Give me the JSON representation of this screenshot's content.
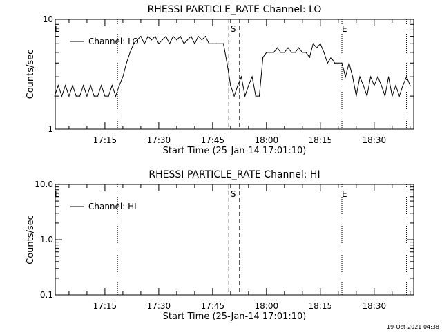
{
  "footer_timestamp": "19-Oct-2021 04:38",
  "chart_data": [
    {
      "type": "line",
      "title": "RHESSI PARTICLE_RATE Channel: LO",
      "xlabel": "Start Time (25-Jan-14 17:01:10)",
      "ylabel": "Counts/sec",
      "y_scale": "log",
      "ylim": [
        1,
        10
      ],
      "y_ticks": [
        {
          "value": 1,
          "label": "1"
        },
        {
          "value": 10,
          "label": "10"
        }
      ],
      "x_time_range": [
        "17:01:10",
        "18:41:00"
      ],
      "x_ticks": [
        "17:15",
        "17:30",
        "17:45",
        "18:00",
        "18:15",
        "18:30"
      ],
      "legend": "top-left",
      "series": [
        {
          "name": "Channel: LO",
          "x": [
            "17:01",
            "17:02",
            "17:03",
            "17:04",
            "17:05",
            "17:06",
            "17:07",
            "17:08",
            "17:09",
            "17:10",
            "17:11",
            "17:12",
            "17:13",
            "17:14",
            "17:15",
            "17:16",
            "17:17",
            "17:18",
            "17:19",
            "17:20",
            "17:21",
            "17:22",
            "17:23",
            "17:24",
            "17:25",
            "17:26",
            "17:27",
            "17:28",
            "17:29",
            "17:30",
            "17:31",
            "17:32",
            "17:33",
            "17:34",
            "17:35",
            "17:36",
            "17:37",
            "17:38",
            "17:39",
            "17:40",
            "17:41",
            "17:42",
            "17:43",
            "17:44",
            "17:45",
            "17:46",
            "17:47",
            "17:48",
            "17:49",
            "17:50",
            "17:51",
            "17:52",
            "17:53",
            "17:54",
            "17:55",
            "17:56",
            "17:57",
            "17:58",
            "17:59",
            "18:00",
            "18:01",
            "18:02",
            "18:03",
            "18:04",
            "18:05",
            "18:06",
            "18:07",
            "18:08",
            "18:09",
            "18:10",
            "18:11",
            "18:12",
            "18:13",
            "18:14",
            "18:15",
            "18:16",
            "18:17",
            "18:18",
            "18:19",
            "18:20",
            "18:21",
            "18:22",
            "18:23",
            "18:24",
            "18:25",
            "18:26",
            "18:27",
            "18:28",
            "18:29",
            "18:30",
            "18:31",
            "18:32",
            "18:33",
            "18:34",
            "18:35",
            "18:36",
            "18:37",
            "18:38",
            "18:39",
            "18:40"
          ],
          "y": [
            2,
            2.5,
            2,
            2.5,
            2,
            2.5,
            2,
            2,
            2.5,
            2,
            2.5,
            2,
            2,
            2.5,
            2,
            2,
            2.5,
            2,
            2.5,
            3,
            4,
            5,
            6,
            6.5,
            7,
            6,
            7,
            6.5,
            7,
            6,
            6.5,
            7,
            6,
            7,
            6.5,
            7,
            6,
            6.5,
            7,
            6,
            7,
            6.5,
            7,
            6,
            6,
            6,
            6,
            6,
            4,
            2.5,
            2,
            2.5,
            3,
            2,
            2.5,
            3,
            2,
            2,
            4.5,
            5,
            5,
            5,
            5.5,
            5,
            5,
            5.5,
            5,
            5,
            5.5,
            5,
            5,
            4.5,
            6,
            5.5,
            6,
            5,
            4,
            4.5,
            4,
            4,
            4,
            3,
            4,
            3,
            2,
            3,
            2.5,
            2,
            3,
            2.5,
            3,
            2.5,
            2,
            3,
            2,
            2.5,
            2,
            2.5,
            3,
            2.5
          ]
        }
      ],
      "annotations": [
        {
          "label": "E",
          "time": "17:01"
        },
        {
          "label": "S",
          "time": "17:50"
        },
        {
          "label": "E",
          "time": "18:21"
        }
      ],
      "dotted_lines": [
        "17:18:30",
        "18:21",
        "18:39"
      ],
      "dashed_lines": [
        "17:49:30",
        "17:52:30"
      ]
    },
    {
      "type": "line",
      "title": "RHESSI PARTICLE_RATE Channel: HI",
      "xlabel": "Start Time (25-Jan-14 17:01:10)",
      "ylabel": "Counts/sec",
      "y_scale": "log",
      "ylim": [
        0.1,
        10
      ],
      "y_ticks": [
        {
          "value": 0.1,
          "label": "0.1"
        },
        {
          "value": 1,
          "label": "1.0"
        },
        {
          "value": 10,
          "label": "10.0"
        }
      ],
      "x_time_range": [
        "17:01:10",
        "18:41:00"
      ],
      "x_ticks": [
        "17:15",
        "17:30",
        "17:45",
        "18:00",
        "18:15",
        "18:30"
      ],
      "legend": "top-left",
      "series": [
        {
          "name": "Channel: HI",
          "x": [],
          "y": []
        }
      ],
      "annotations": [
        {
          "label": "E",
          "time": "17:01"
        },
        {
          "label": "S",
          "time": "17:50"
        },
        {
          "label": "E",
          "time": "18:21"
        }
      ],
      "dotted_lines": [
        "17:18:30",
        "18:21",
        "18:39"
      ],
      "dashed_lines": [
        "17:49:30",
        "17:52:30"
      ]
    }
  ]
}
